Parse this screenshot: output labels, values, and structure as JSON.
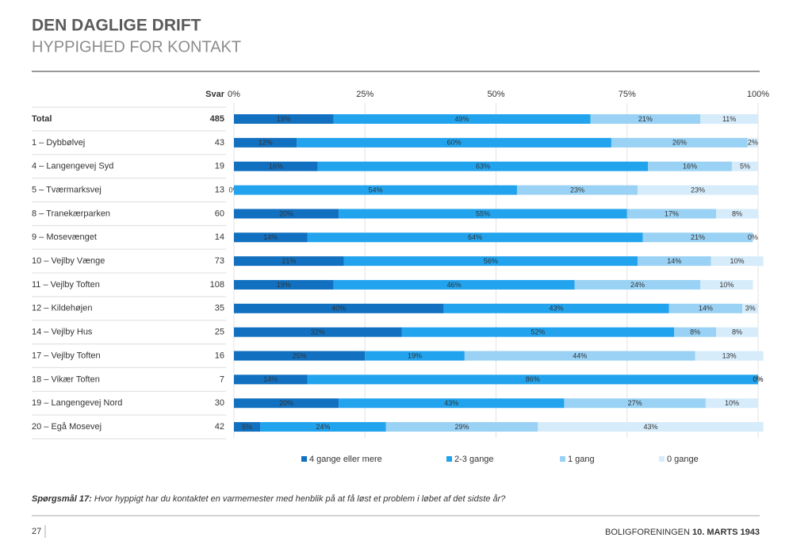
{
  "chart_data": {
    "type": "stacked-bar-horizontal",
    "title": "DEN DAGLIGE DRIFT",
    "subtitle": "HYPPIGHED FOR KONTAKT",
    "response_header": "Svar",
    "categories": [
      "Total",
      "1 – Dybbølvej",
      "4 – Langengevej Syd",
      "5 – Tværmarksvej",
      "8 – Tranekærparken",
      "9 – Mosevænget",
      "10 – Vejlby Vænge",
      "11 – Vejlby Toften",
      "12 – Kildehøjen",
      "14 – Vejlby Hus",
      "17 – Vejlby Toften",
      "18 – Vikær Toften",
      "19 – Langengevej Nord",
      "20 – Egå Mosevej"
    ],
    "responses": [
      485,
      43,
      19,
      13,
      60,
      14,
      73,
      108,
      35,
      25,
      16,
      7,
      30,
      42
    ],
    "series": [
      {
        "name": "4 gange eller mere",
        "color": "#1170c0",
        "values": [
          19,
          12,
          16,
          0,
          20,
          14,
          21,
          19,
          40,
          32,
          25,
          14,
          20,
          5
        ],
        "value_labels": [
          "19%",
          "12%",
          "16%",
          "0%",
          "20%",
          "14%",
          "21%",
          "19%",
          "40%",
          "32%",
          "25%",
          "14%",
          "20%",
          "5%"
        ]
      },
      {
        "name": "2-3 gange",
        "color": "#22a3ee",
        "values": [
          49,
          60,
          63,
          54,
          55,
          64,
          56,
          46,
          43,
          52,
          19,
          86,
          43,
          24
        ],
        "value_labels": [
          "49%",
          "60%",
          "63%",
          "54%",
          "55%",
          "64%",
          "56%",
          "46%",
          "43%",
          "52%",
          "19%",
          "86%",
          "43%",
          "24%"
        ]
      },
      {
        "name": "1 gang",
        "color": "#99d2f5",
        "values": [
          21,
          26,
          16,
          23,
          17,
          21,
          14,
          24,
          14,
          8,
          44,
          0,
          27,
          29
        ],
        "value_labels": [
          "21%",
          "26%",
          "16%",
          "23%",
          "17%",
          "21%",
          "14%",
          "24%",
          "14%",
          "8%",
          "44%",
          "0%",
          "27%",
          "29%"
        ]
      },
      {
        "name": "0 gange",
        "color": "#d6ecfb",
        "values": [
          11,
          2,
          5,
          23,
          8,
          0,
          10,
          10,
          3,
          8,
          13,
          0,
          10,
          43
        ],
        "value_labels": [
          "11%",
          "2%",
          "5%",
          "23%",
          "8%",
          "0%",
          "10%",
          "10%",
          "3%",
          "8%",
          "13%",
          "0%",
          "10%",
          "43%"
        ]
      }
    ],
    "xlim": [
      0,
      100
    ],
    "xticks": [
      {
        "value": 0,
        "label": "0%"
      },
      {
        "value": 25,
        "label": "25%"
      },
      {
        "value": 50,
        "label": "50%"
      },
      {
        "value": 75,
        "label": "75%"
      },
      {
        "value": 100,
        "label": "100%"
      }
    ],
    "grid": true,
    "legend": "bottom"
  },
  "footnote": {
    "label": "Spørgsmål 17:",
    "text": " Hvor hyppigt har du kontaktet en varmemester med henblik på at få løst et problem i løbet af det sidste år?"
  },
  "footer": {
    "page": "27",
    "org": "BOLIGFORENINGEN",
    "date": "10. MARTS 1943"
  }
}
